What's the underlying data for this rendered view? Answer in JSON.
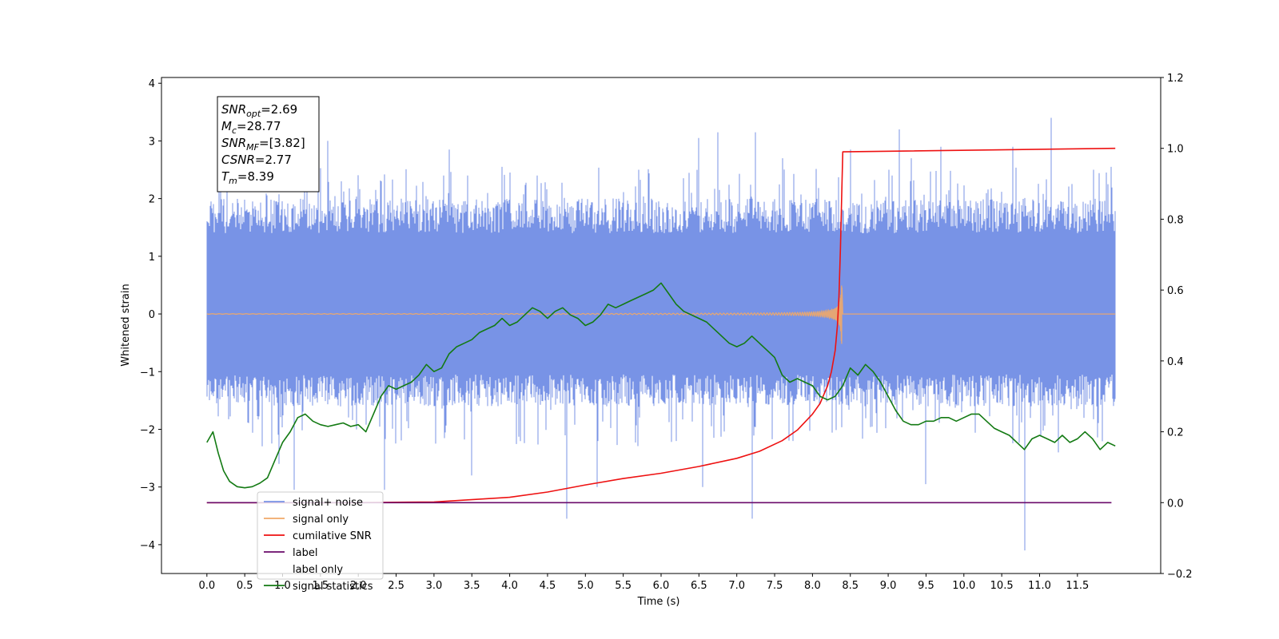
{
  "chart_data": {
    "type": "line",
    "xlabel": "Time (s)",
    "ylabel": "Whitened strain",
    "xlim": [
      -0.6,
      12.6
    ],
    "ylim": [
      -4.5,
      4.1
    ],
    "y2lim": [
      -0.2,
      1.2
    ],
    "xticks": [
      0.0,
      0.5,
      1.0,
      1.5,
      2.0,
      2.5,
      3.0,
      3.5,
      4.0,
      4.5,
      5.0,
      5.5,
      6.0,
      6.5,
      7.0,
      7.5,
      8.0,
      8.5,
      9.0,
      9.5,
      10.0,
      10.5,
      11.0,
      11.5
    ],
    "xtick_labels": [
      "0.0",
      "0.5",
      "1.0",
      "1.5",
      "2.0",
      "2.5",
      "3.0",
      "3.5",
      "4.0",
      "4.5",
      "5.0",
      "5.5",
      "6.0",
      "6.5",
      "7.0",
      "7.5",
      "8.0",
      "8.5",
      "9.0",
      "9.5",
      "10.0",
      "10.5",
      "11.0",
      "11.5"
    ],
    "yticks": [
      -4,
      -3,
      -2,
      -1,
      0,
      1,
      2,
      3,
      4
    ],
    "ytick_labels": [
      "−4",
      "−3",
      "−2",
      "−1",
      "0",
      "1",
      "2",
      "3",
      "4"
    ],
    "y2ticks": [
      -0.2,
      0.0,
      0.2,
      0.4,
      0.6,
      0.8,
      1.0,
      1.2
    ],
    "y2tick_labels": [
      "−0.2",
      "0.0",
      "0.2",
      "0.4",
      "0.6",
      "0.8",
      "1.0",
      "1.2"
    ],
    "legend_position": "lower-left",
    "annotation": {
      "lines": [
        {
          "sym": "SNR",
          "sub": "opt",
          "val": "=2.69"
        },
        {
          "sym": "M",
          "sub": "c",
          "val": "=28.77"
        },
        {
          "sym": "SNR",
          "sub": "MF",
          "val": "=[3.82]"
        },
        {
          "sym": "CSNR",
          "sub": "",
          "val": "=2.77"
        },
        {
          "sym": "T",
          "sub": "m",
          "val": "=8.39"
        }
      ]
    },
    "series": [
      {
        "name": "signal+ noise",
        "color": "#7893e6",
        "axis": "left",
        "kind": "noise",
        "t_start": 0.0,
        "t_end": 12.0,
        "band_low": -1.6,
        "band_high": 2.0,
        "spikes": [
          [
            0.05,
            1.95
          ],
          [
            0.18,
            2.2
          ],
          [
            1.15,
            2.65
          ],
          [
            1.6,
            3.0
          ],
          [
            2.3,
            2.3
          ],
          [
            3.2,
            2.85
          ],
          [
            3.5,
            3.65
          ],
          [
            3.9,
            2.55
          ],
          [
            5.7,
            2.5
          ],
          [
            6.4,
            2.1
          ],
          [
            6.5,
            3.05
          ],
          [
            6.75,
            3.15
          ],
          [
            7.25,
            3.15
          ],
          [
            7.6,
            2.7
          ],
          [
            8.5,
            2.85
          ],
          [
            9.05,
            2.4
          ],
          [
            9.15,
            3.2
          ],
          [
            9.3,
            2.7
          ],
          [
            9.7,
            2.9
          ],
          [
            10.65,
            2.9
          ],
          [
            11.15,
            3.4
          ],
          [
            11.95,
            2.55
          ],
          [
            0.95,
            -2.6
          ],
          [
            1.15,
            -3.05
          ],
          [
            2.35,
            -3.05
          ],
          [
            3.5,
            -2.8
          ],
          [
            4.75,
            -3.55
          ],
          [
            5.15,
            -3.0
          ],
          [
            6.55,
            -3.0
          ],
          [
            7.2,
            -3.55
          ],
          [
            9.5,
            -2.95
          ],
          [
            10.8,
            -4.1
          ],
          [
            11.25,
            -2.4
          ]
        ]
      },
      {
        "name": "signal only",
        "color": "#f0a868",
        "axis": "left",
        "kind": "chirp",
        "t_start": 0.0,
        "t_end": 12.0,
        "merger": 8.39,
        "peak": 0.55
      },
      {
        "name": "cumilative SNR",
        "color": "#ee1111",
        "axis": "right",
        "x": [
          0.0,
          2.0,
          3.0,
          4.0,
          4.5,
          5.0,
          5.5,
          6.0,
          6.5,
          7.0,
          7.3,
          7.6,
          7.8,
          8.0,
          8.1,
          8.2,
          8.25,
          8.3,
          8.33,
          8.35,
          8.37,
          8.39,
          8.4,
          12.0
        ],
        "y": [
          0.0,
          0.0,
          0.002,
          0.015,
          0.03,
          0.05,
          0.068,
          0.083,
          0.102,
          0.125,
          0.145,
          0.175,
          0.205,
          0.25,
          0.28,
          0.33,
          0.37,
          0.43,
          0.5,
          0.58,
          0.72,
          0.9,
          0.99,
          1.0
        ]
      },
      {
        "name": "label",
        "color": "#6a0a6a",
        "axis": "right",
        "x": [
          0.0,
          11.95
        ],
        "y": [
          0.0,
          0.0
        ]
      },
      {
        "name": "label only",
        "color": "#ffffff",
        "axis": "right",
        "x": [],
        "y": []
      },
      {
        "name": "signal statistics",
        "color": "#137a13",
        "axis": "right",
        "x": [
          0.0,
          0.08,
          0.15,
          0.22,
          0.3,
          0.4,
          0.5,
          0.6,
          0.7,
          0.8,
          0.9,
          1.0,
          1.1,
          1.2,
          1.3,
          1.4,
          1.5,
          1.6,
          1.7,
          1.8,
          1.9,
          2.0,
          2.1,
          2.2,
          2.3,
          2.4,
          2.5,
          2.6,
          2.7,
          2.8,
          2.9,
          3.0,
          3.1,
          3.2,
          3.3,
          3.4,
          3.5,
          3.6,
          3.7,
          3.8,
          3.9,
          4.0,
          4.1,
          4.2,
          4.3,
          4.4,
          4.5,
          4.6,
          4.7,
          4.8,
          4.9,
          5.0,
          5.1,
          5.2,
          5.3,
          5.4,
          5.5,
          5.6,
          5.7,
          5.8,
          5.9,
          6.0,
          6.1,
          6.2,
          6.3,
          6.4,
          6.5,
          6.6,
          6.7,
          6.8,
          6.9,
          7.0,
          7.1,
          7.2,
          7.3,
          7.4,
          7.5,
          7.6,
          7.7,
          7.8,
          7.9,
          8.0,
          8.1,
          8.2,
          8.3,
          8.4,
          8.5,
          8.6,
          8.7,
          8.8,
          8.9,
          9.0,
          9.1,
          9.2,
          9.3,
          9.4,
          9.5,
          9.6,
          9.7,
          9.8,
          9.9,
          10.0,
          10.1,
          10.2,
          10.3,
          10.4,
          10.5,
          10.6,
          10.7,
          10.8,
          10.9,
          11.0,
          11.1,
          11.2,
          11.3,
          11.4,
          11.5,
          11.6,
          11.7,
          11.8,
          11.9,
          12.0
        ],
        "y": [
          0.17,
          0.2,
          0.14,
          0.09,
          0.06,
          0.045,
          0.042,
          0.045,
          0.055,
          0.07,
          0.12,
          0.17,
          0.2,
          0.24,
          0.25,
          0.23,
          0.22,
          0.215,
          0.22,
          0.225,
          0.215,
          0.22,
          0.2,
          0.25,
          0.3,
          0.33,
          0.32,
          0.33,
          0.34,
          0.36,
          0.39,
          0.37,
          0.38,
          0.42,
          0.44,
          0.45,
          0.46,
          0.48,
          0.49,
          0.5,
          0.52,
          0.5,
          0.51,
          0.53,
          0.55,
          0.54,
          0.52,
          0.54,
          0.55,
          0.53,
          0.52,
          0.5,
          0.51,
          0.53,
          0.56,
          0.55,
          0.56,
          0.57,
          0.58,
          0.59,
          0.6,
          0.62,
          0.59,
          0.56,
          0.54,
          0.53,
          0.52,
          0.51,
          0.49,
          0.47,
          0.45,
          0.44,
          0.45,
          0.47,
          0.45,
          0.43,
          0.41,
          0.36,
          0.34,
          0.35,
          0.34,
          0.33,
          0.3,
          0.29,
          0.3,
          0.33,
          0.38,
          0.36,
          0.39,
          0.37,
          0.34,
          0.3,
          0.26,
          0.23,
          0.22,
          0.22,
          0.23,
          0.23,
          0.24,
          0.24,
          0.23,
          0.24,
          0.25,
          0.25,
          0.23,
          0.21,
          0.2,
          0.19,
          0.17,
          0.15,
          0.18,
          0.19,
          0.18,
          0.17,
          0.19,
          0.17,
          0.18,
          0.2,
          0.18,
          0.15,
          0.17,
          0.16
        ]
      }
    ]
  }
}
